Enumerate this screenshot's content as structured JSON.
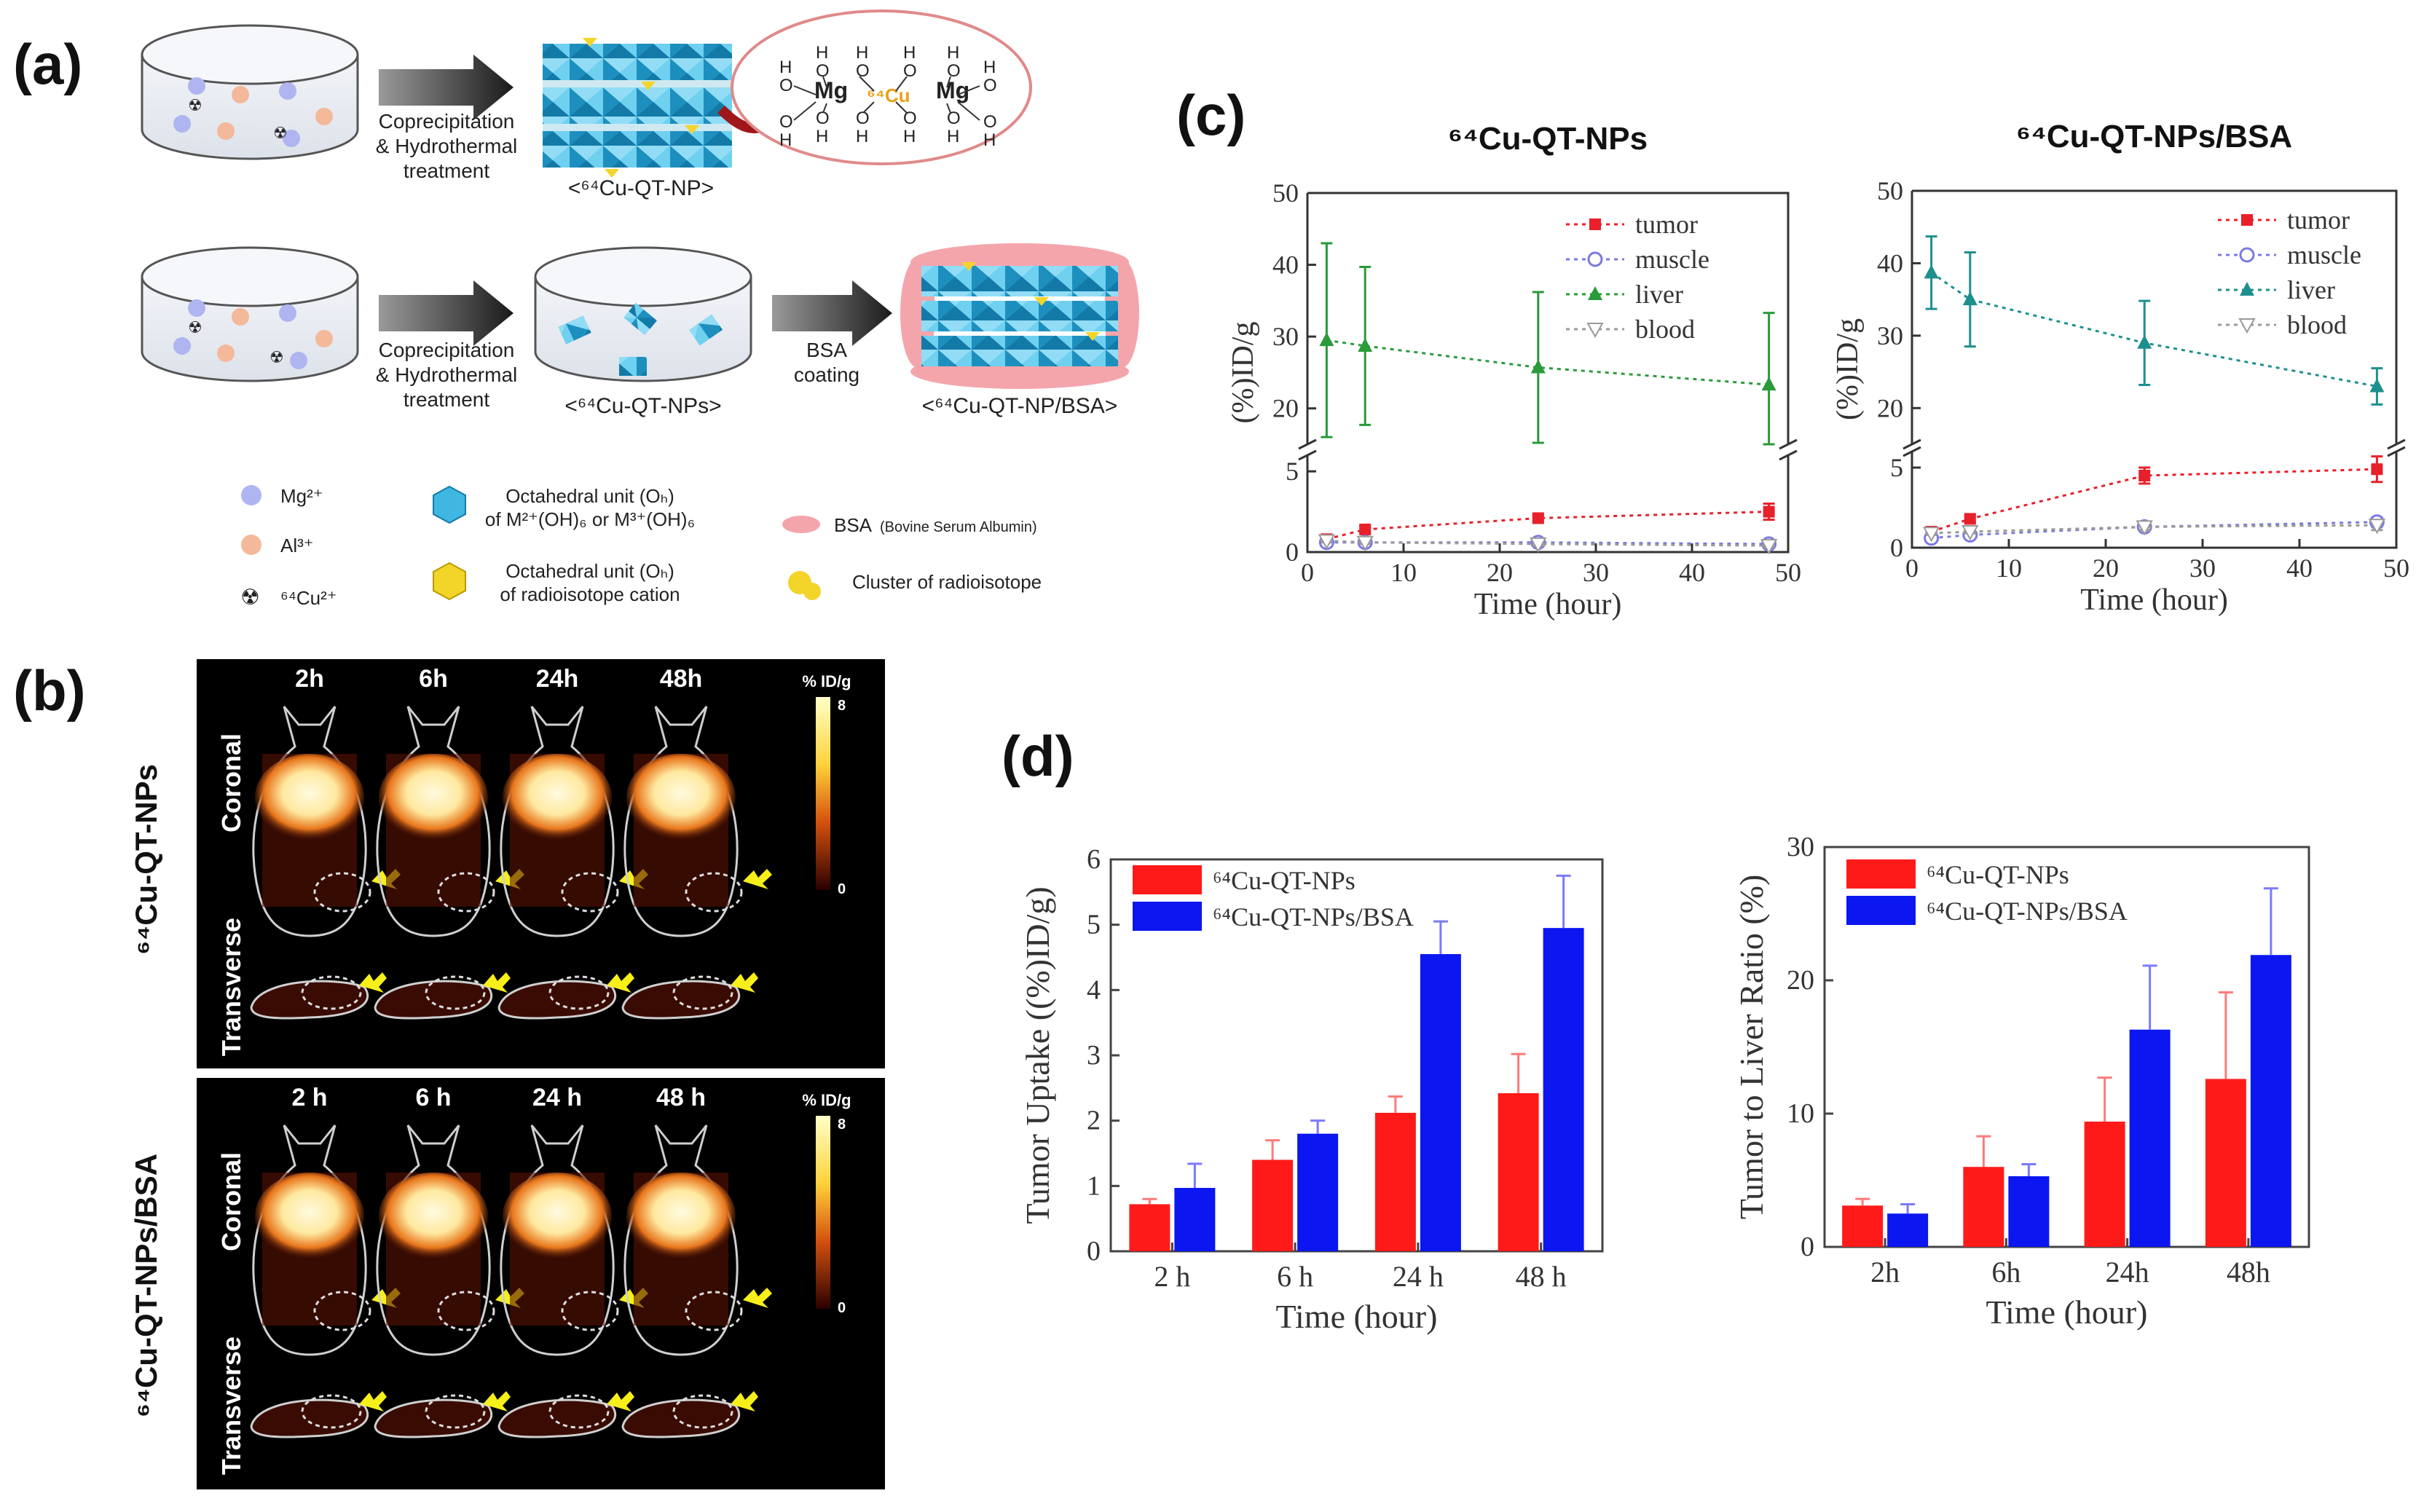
{
  "figure_labels": {
    "a": "(a)",
    "b": "(b)",
    "c": "(c)",
    "d": "(d)"
  },
  "panel_a": {
    "process1": {
      "step": [
        "Coprecipitation",
        "& Hydrothermal",
        "treatment"
      ],
      "product": "<⁶⁴Cu-QT-NP>",
      "inset": {
        "mg": "Mg",
        "cu": "⁶⁴Cu",
        "o": "O",
        "h": "H"
      }
    },
    "process2": {
      "step": [
        "Coprecipitation",
        "& Hydrothermal",
        "treatment"
      ],
      "intermediate": "<⁶⁴Cu-QT-NPs>",
      "coating": [
        "BSA",
        "coating"
      ],
      "product": "<⁶⁴Cu-QT-NP/BSA>"
    },
    "legend": {
      "mg": "Mg²⁺",
      "al": "Al³⁺",
      "cu": "⁶⁴Cu²⁺",
      "oct1": [
        "Octahedral unit (Oₕ)",
        "of M²⁺(OH)₆ or M³⁺(OH)₆"
      ],
      "oct2": [
        "Octahedral unit (Oₕ)",
        "of radioisotope cation"
      ],
      "bsa_main": "BSA",
      "bsa_sub": "(Bovine Serum Albumin)",
      "cluster": "Cluster of radioisotope"
    }
  },
  "panel_b": {
    "top": {
      "times": [
        "2h",
        "6h",
        "24h",
        "48h"
      ],
      "row1": "Coronal",
      "row2": "Transverse",
      "side": "⁶⁴Cu-QT-NPs",
      "scale": {
        "unit": "% ID/g",
        "max": "8",
        "min": "0"
      }
    },
    "bottom": {
      "times": [
        "2 h",
        "6 h",
        "24 h",
        "48 h"
      ],
      "row1": "Coronal",
      "row2": "Transverse",
      "side": "⁶⁴Cu-QT-NPs/BSA",
      "scale": {
        "unit": "% ID/g",
        "max": "8",
        "min": "0"
      }
    }
  },
  "chart_data": [
    {
      "id": "c1",
      "type": "line",
      "title": "⁶⁴Cu-QT-NPs",
      "xlabel": "Time (hour)",
      "ylabel": "(%)ID/g",
      "x": [
        2,
        6,
        24,
        48
      ],
      "xlim": [
        0,
        50
      ],
      "xticks": [
        0,
        10,
        20,
        30,
        40,
        50
      ],
      "ylim_upper": [
        15,
        50
      ],
      "yticks_upper": [
        20,
        30,
        40,
        50
      ],
      "ylim_lower": [
        0,
        6
      ],
      "yticks_lower": [
        0,
        5
      ],
      "series": [
        {
          "name": "tumor",
          "color": "#e8202a",
          "marker": "square",
          "values": [
            0.8,
            1.4,
            2.1,
            2.5
          ],
          "err": [
            0.1,
            0.2,
            0.2,
            0.5
          ]
        },
        {
          "name": "muscle",
          "color": "#7b79e0",
          "marker": "circle",
          "values": [
            0.6,
            0.6,
            0.6,
            0.5
          ],
          "err": [
            0.1,
            0.1,
            0.1,
            0.1
          ]
        },
        {
          "name": "liver",
          "color": "#2a9a3a",
          "marker": "triangle",
          "values": [
            29.5,
            28.7,
            25.7,
            23.3
          ],
          "err": [
            13.5,
            11.0,
            10.5,
            10.0
          ]
        },
        {
          "name": "blood",
          "color": "#9a9a9a",
          "marker": "triangle-down",
          "values": [
            0.7,
            0.6,
            0.5,
            0.4
          ],
          "err": [
            0.1,
            0.1,
            0.1,
            0.1
          ]
        }
      ]
    },
    {
      "id": "c2",
      "type": "line",
      "title": "⁶⁴Cu-QT-NPs/BSA",
      "xlabel": "Time (hour)",
      "ylabel": "(%)ID/g",
      "x": [
        2,
        6,
        24,
        48
      ],
      "xlim": [
        0,
        50
      ],
      "xticks": [
        0,
        10,
        20,
        30,
        40,
        50
      ],
      "ylim_upper": [
        15,
        50
      ],
      "yticks_upper": [
        20,
        30,
        40,
        50
      ],
      "ylim_lower": [
        0,
        6
      ],
      "yticks_lower": [
        0,
        5
      ],
      "series": [
        {
          "name": "tumor",
          "color": "#e8202a",
          "marker": "square",
          "values": [
            1.0,
            1.8,
            4.5,
            4.9
          ],
          "err": [
            0.2,
            0.2,
            0.5,
            0.8
          ]
        },
        {
          "name": "muscle",
          "color": "#7b79e0",
          "marker": "circle",
          "values": [
            0.6,
            0.8,
            1.3,
            1.6
          ],
          "err": [
            0.1,
            0.1,
            0.2,
            0.3
          ]
        },
        {
          "name": "liver",
          "color": "#1e8f8f",
          "marker": "triangle",
          "values": [
            38.7,
            35.0,
            29.0,
            23.0
          ],
          "err": [
            5.0,
            6.5,
            5.8,
            2.5
          ]
        },
        {
          "name": "blood",
          "color": "#9a9a9a",
          "marker": "triangle-down",
          "values": [
            0.9,
            1.0,
            1.3,
            1.4
          ],
          "err": [
            0.1,
            0.1,
            0.2,
            0.3
          ]
        }
      ]
    },
    {
      "id": "d1",
      "type": "bar",
      "categories": [
        "2 h",
        "6 h",
        "24 h",
        "48 h"
      ],
      "xlabel": "Time (hour)",
      "ylabel": "Tumor Uptake ((%)ID/g)",
      "ylim": [
        0,
        6
      ],
      "yticks": [
        0,
        1,
        2,
        3,
        4,
        5,
        6
      ],
      "series": [
        {
          "name": "⁶⁴Cu-QT-NPs",
          "color": "#ff1a1a",
          "values": [
            0.72,
            1.4,
            2.12,
            2.42
          ],
          "err": [
            0.08,
            0.3,
            0.25,
            0.6
          ]
        },
        {
          "name": "⁶⁴Cu-QT-NPs/BSA",
          "color": "#0b16f0",
          "values": [
            0.97,
            1.8,
            4.55,
            4.95
          ],
          "err": [
            0.37,
            0.2,
            0.5,
            0.8
          ]
        }
      ]
    },
    {
      "id": "d2",
      "type": "bar",
      "categories": [
        "2h",
        "6h",
        "24h",
        "48h"
      ],
      "xlabel": "Time (hour)",
      "ylabel": "Tumor to Liver Ratio (%)",
      "ylim": [
        0,
        30
      ],
      "yticks": [
        0,
        10,
        20,
        30
      ],
      "series": [
        {
          "name": "⁶⁴Cu-QT-NPs",
          "color": "#ff1a1a",
          "values": [
            3.1,
            6.0,
            9.4,
            12.6
          ],
          "err": [
            0.5,
            2.3,
            3.3,
            6.5
          ]
        },
        {
          "name": "⁶⁴Cu-QT-NPs/BSA",
          "color": "#0b16f0",
          "values": [
            2.5,
            5.3,
            16.3,
            21.9
          ],
          "err": [
            0.7,
            0.9,
            4.8,
            5.0
          ]
        }
      ]
    }
  ]
}
